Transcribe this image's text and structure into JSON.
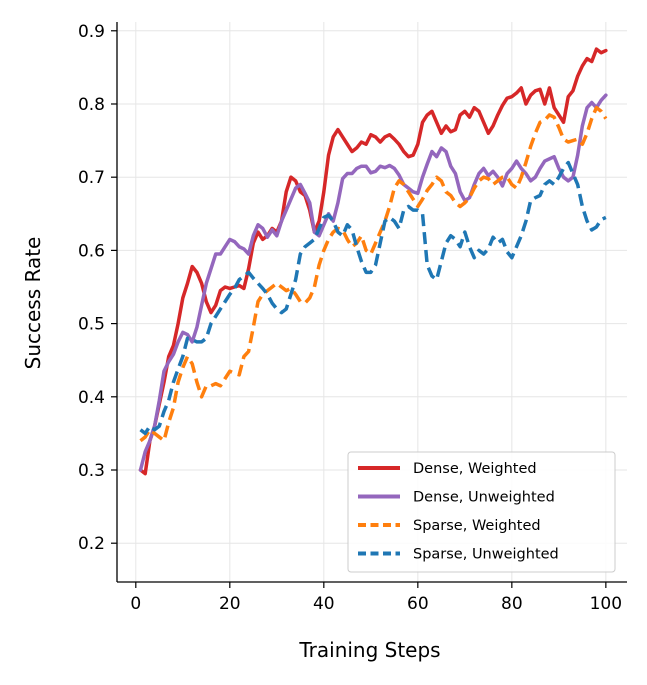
{
  "chart_data": {
    "type": "line",
    "xlabel": "Training Steps",
    "ylabel": "Success Rate",
    "xlim": [
      -4,
      104.5
    ],
    "ylim": [
      0.147,
      0.912
    ],
    "xticks": [
      0,
      20,
      40,
      60,
      80,
      100
    ],
    "yticks": [
      0.2,
      0.3,
      0.4,
      0.5,
      0.6,
      0.7,
      0.8,
      0.9
    ],
    "xtick_labels": [
      "0",
      "20",
      "40",
      "60",
      "80",
      "100"
    ],
    "ytick_labels": [
      "0.2",
      "0.3",
      "0.4",
      "0.5",
      "0.6",
      "0.7",
      "0.8",
      "0.9"
    ],
    "grid": true,
    "legend_position": "lower right",
    "series": [
      {
        "name": "Dense, Weighted",
        "color": "#d62728",
        "style": "solid",
        "x": [
          1,
          2,
          3,
          4,
          5,
          6,
          7,
          8,
          9,
          10,
          11,
          12,
          13,
          14,
          15,
          16,
          17,
          18,
          19,
          20,
          21,
          22,
          23,
          24,
          25,
          26,
          27,
          28,
          29,
          30,
          31,
          32,
          33,
          34,
          35,
          36,
          37,
          38,
          39,
          40,
          41,
          42,
          43,
          44,
          45,
          46,
          47,
          48,
          49,
          50,
          51,
          52,
          53,
          54,
          55,
          56,
          57,
          58,
          59,
          60,
          61,
          62,
          63,
          64,
          65,
          66,
          67,
          68,
          69,
          70,
          71,
          72,
          73,
          74,
          75,
          76,
          77,
          78,
          79,
          80,
          81,
          82,
          83,
          84,
          85,
          86,
          87,
          88,
          89,
          90,
          91,
          92,
          93,
          94,
          95,
          96,
          97,
          98,
          99,
          100
        ],
        "values": [
          0.3,
          0.295,
          0.34,
          0.36,
          0.39,
          0.42,
          0.455,
          0.47,
          0.5,
          0.535,
          0.555,
          0.578,
          0.57,
          0.555,
          0.53,
          0.515,
          0.525,
          0.545,
          0.55,
          0.548,
          0.55,
          0.552,
          0.548,
          0.575,
          0.61,
          0.625,
          0.615,
          0.62,
          0.63,
          0.625,
          0.64,
          0.68,
          0.7,
          0.695,
          0.68,
          0.675,
          0.655,
          0.625,
          0.64,
          0.68,
          0.73,
          0.755,
          0.765,
          0.755,
          0.745,
          0.735,
          0.74,
          0.748,
          0.745,
          0.758,
          0.755,
          0.748,
          0.755,
          0.758,
          0.752,
          0.745,
          0.735,
          0.728,
          0.73,
          0.745,
          0.775,
          0.785,
          0.79,
          0.775,
          0.76,
          0.77,
          0.762,
          0.765,
          0.785,
          0.79,
          0.782,
          0.795,
          0.79,
          0.775,
          0.76,
          0.77,
          0.785,
          0.798,
          0.808,
          0.81,
          0.815,
          0.822,
          0.8,
          0.812,
          0.818,
          0.82,
          0.8,
          0.822,
          0.795,
          0.785,
          0.775,
          0.81,
          0.818,
          0.838,
          0.852,
          0.862,
          0.858,
          0.875,
          0.87,
          0.873
        ]
      },
      {
        "name": "Dense, Unweighted",
        "color": "#9467bd",
        "style": "solid",
        "x": [
          1,
          2,
          3,
          4,
          5,
          6,
          7,
          8,
          9,
          10,
          11,
          12,
          13,
          14,
          15,
          16,
          17,
          18,
          19,
          20,
          21,
          22,
          23,
          24,
          25,
          26,
          27,
          28,
          29,
          30,
          31,
          32,
          33,
          34,
          35,
          36,
          37,
          38,
          39,
          40,
          41,
          42,
          43,
          44,
          45,
          46,
          47,
          48,
          49,
          50,
          51,
          52,
          53,
          54,
          55,
          56,
          57,
          58,
          59,
          60,
          61,
          62,
          63,
          64,
          65,
          66,
          67,
          68,
          69,
          70,
          71,
          72,
          73,
          74,
          75,
          76,
          77,
          78,
          79,
          80,
          81,
          82,
          83,
          84,
          85,
          86,
          87,
          88,
          89,
          90,
          91,
          92,
          93,
          94,
          95,
          96,
          97,
          98,
          99,
          100
        ],
        "values": [
          0.3,
          0.325,
          0.34,
          0.36,
          0.395,
          0.435,
          0.448,
          0.458,
          0.475,
          0.488,
          0.485,
          0.475,
          0.495,
          0.525,
          0.555,
          0.575,
          0.595,
          0.595,
          0.605,
          0.615,
          0.612,
          0.605,
          0.602,
          0.595,
          0.62,
          0.635,
          0.63,
          0.618,
          0.628,
          0.62,
          0.64,
          0.655,
          0.67,
          0.685,
          0.69,
          0.678,
          0.665,
          0.625,
          0.62,
          0.635,
          0.65,
          0.64,
          0.665,
          0.698,
          0.705,
          0.705,
          0.712,
          0.715,
          0.715,
          0.706,
          0.708,
          0.715,
          0.713,
          0.716,
          0.712,
          0.703,
          0.69,
          0.685,
          0.68,
          0.678,
          0.7,
          0.718,
          0.735,
          0.728,
          0.74,
          0.735,
          0.715,
          0.705,
          0.68,
          0.668,
          0.672,
          0.69,
          0.705,
          0.712,
          0.702,
          0.708,
          0.7,
          0.688,
          0.705,
          0.712,
          0.722,
          0.712,
          0.705,
          0.695,
          0.7,
          0.712,
          0.722,
          0.725,
          0.728,
          0.712,
          0.7,
          0.695,
          0.7,
          0.73,
          0.77,
          0.795,
          0.802,
          0.795,
          0.805,
          0.812
        ]
      },
      {
        "name": "Sparse, Weighted",
        "color": "#ff7f0e",
        "style": "dashed",
        "x": [
          1,
          2,
          3,
          4,
          5,
          6,
          7,
          8,
          9,
          10,
          11,
          12,
          13,
          14,
          15,
          16,
          17,
          18,
          19,
          20,
          21,
          22,
          23,
          24,
          25,
          26,
          27,
          28,
          29,
          30,
          31,
          32,
          33,
          34,
          35,
          36,
          37,
          38,
          39,
          40,
          41,
          42,
          43,
          44,
          45,
          46,
          47,
          48,
          49,
          50,
          51,
          52,
          53,
          54,
          55,
          56,
          57,
          58,
          59,
          60,
          61,
          62,
          63,
          64,
          65,
          66,
          67,
          68,
          69,
          70,
          71,
          72,
          73,
          74,
          75,
          76,
          77,
          78,
          79,
          80,
          81,
          82,
          83,
          84,
          85,
          86,
          87,
          88,
          89,
          90,
          91,
          92,
          93,
          94,
          95,
          96,
          97,
          98,
          99,
          100
        ],
        "values": [
          0.34,
          0.345,
          0.355,
          0.35,
          0.345,
          0.34,
          0.365,
          0.385,
          0.42,
          0.44,
          0.455,
          0.445,
          0.42,
          0.4,
          0.415,
          0.415,
          0.418,
          0.415,
          0.425,
          0.435,
          0.432,
          0.43,
          0.455,
          0.462,
          0.495,
          0.53,
          0.54,
          0.545,
          0.55,
          0.555,
          0.55,
          0.545,
          0.548,
          0.54,
          0.53,
          0.528,
          0.535,
          0.55,
          0.58,
          0.6,
          0.615,
          0.625,
          0.63,
          0.628,
          0.615,
          0.605,
          0.61,
          0.62,
          0.6,
          0.595,
          0.61,
          0.625,
          0.64,
          0.66,
          0.685,
          0.695,
          0.69,
          0.68,
          0.67,
          0.66,
          0.67,
          0.682,
          0.69,
          0.7,
          0.695,
          0.68,
          0.675,
          0.665,
          0.66,
          0.665,
          0.672,
          0.685,
          0.695,
          0.7,
          0.698,
          0.69,
          0.695,
          0.7,
          0.7,
          0.69,
          0.685,
          0.7,
          0.72,
          0.742,
          0.76,
          0.775,
          0.778,
          0.785,
          0.782,
          0.768,
          0.752,
          0.748,
          0.75,
          0.752,
          0.745,
          0.76,
          0.78,
          0.795,
          0.79,
          0.78
        ]
      },
      {
        "name": "Sparse, Unweighted",
        "color": "#1f77b4",
        "style": "dashed",
        "x": [
          1,
          2,
          3,
          4,
          5,
          6,
          7,
          8,
          9,
          10,
          11,
          12,
          13,
          14,
          15,
          16,
          17,
          18,
          19,
          20,
          21,
          22,
          23,
          24,
          25,
          26,
          27,
          28,
          29,
          30,
          31,
          32,
          33,
          34,
          35,
          36,
          37,
          38,
          39,
          40,
          41,
          42,
          43,
          44,
          45,
          46,
          47,
          48,
          49,
          50,
          51,
          52,
          53,
          54,
          55,
          56,
          57,
          58,
          59,
          60,
          61,
          62,
          63,
          64,
          65,
          66,
          67,
          68,
          69,
          70,
          71,
          72,
          73,
          74,
          75,
          76,
          77,
          78,
          79,
          80,
          81,
          82,
          83,
          84,
          85,
          86,
          87,
          88,
          89,
          90,
          91,
          92,
          93,
          94,
          95,
          96,
          97,
          98,
          99,
          100
        ],
        "values": [
          0.355,
          0.35,
          0.36,
          0.355,
          0.36,
          0.38,
          0.395,
          0.42,
          0.438,
          0.455,
          0.48,
          0.478,
          0.475,
          0.475,
          0.48,
          0.5,
          0.51,
          0.52,
          0.53,
          0.54,
          0.548,
          0.56,
          0.565,
          0.57,
          0.562,
          0.555,
          0.548,
          0.54,
          0.528,
          0.52,
          0.515,
          0.52,
          0.54,
          0.56,
          0.595,
          0.605,
          0.61,
          0.615,
          0.63,
          0.645,
          0.648,
          0.64,
          0.625,
          0.62,
          0.635,
          0.628,
          0.605,
          0.585,
          0.57,
          0.57,
          0.58,
          0.61,
          0.64,
          0.645,
          0.64,
          0.63,
          0.655,
          0.66,
          0.655,
          0.655,
          0.65,
          0.58,
          0.565,
          0.56,
          0.585,
          0.61,
          0.62,
          0.615,
          0.605,
          0.625,
          0.605,
          0.59,
          0.6,
          0.595,
          0.602,
          0.618,
          0.61,
          0.615,
          0.598,
          0.59,
          0.605,
          0.62,
          0.64,
          0.668,
          0.672,
          0.675,
          0.69,
          0.695,
          0.69,
          0.7,
          0.712,
          0.72,
          0.705,
          0.69,
          0.66,
          0.64,
          0.628,
          0.632,
          0.642,
          0.645
        ]
      }
    ]
  }
}
